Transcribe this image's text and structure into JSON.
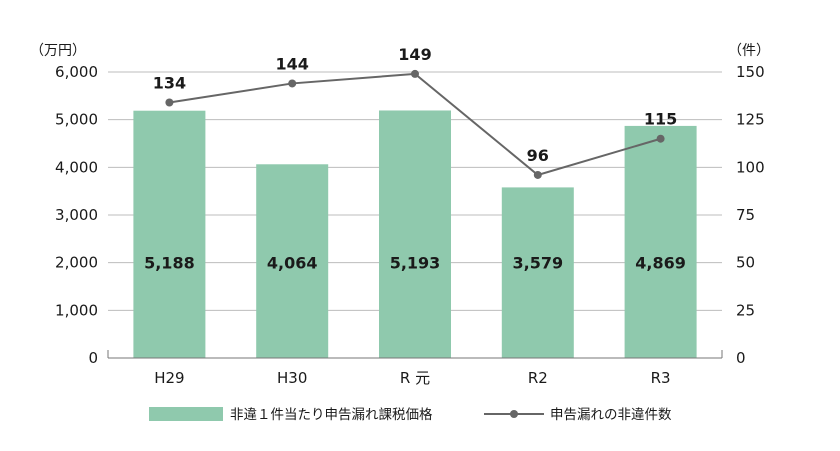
{
  "chart_data": {
    "type": "bar",
    "categories": [
      "H29",
      "H30",
      "R 元",
      "R2",
      "R3"
    ],
    "left_axis": {
      "unit": "（万円）",
      "ylim": [
        0,
        6000
      ],
      "ticks": [
        "0",
        "1,000",
        "2,000",
        "3,000",
        "4,000",
        "5,000",
        "6,000"
      ],
      "tick_values": [
        0,
        1000,
        2000,
        3000,
        4000,
        5000,
        6000
      ]
    },
    "right_axis": {
      "unit": "（件）",
      "ylim": [
        0,
        150
      ],
      "ticks": [
        "0",
        "25",
        "50",
        "75",
        "100",
        "125",
        "150"
      ],
      "tick_values": [
        0,
        25,
        50,
        75,
        100,
        125,
        150
      ]
    },
    "series": [
      {
        "name": "非違１件当たり申告漏れ課税価格",
        "type": "bar",
        "axis": "left",
        "values": [
          5188,
          4064,
          5193,
          3579,
          4869
        ],
        "labels": [
          "5,188",
          "4,064",
          "5,193",
          "3,579",
          "4,869"
        ],
        "color": "#8fc9ad"
      },
      {
        "name": "申告漏れの非違件数",
        "type": "line",
        "axis": "right",
        "values": [
          134,
          144,
          149,
          96,
          115
        ],
        "labels": [
          "134",
          "144",
          "149",
          "96",
          "115"
        ],
        "color": "#666666"
      }
    ],
    "grid": true,
    "legend_position": "bottom"
  }
}
